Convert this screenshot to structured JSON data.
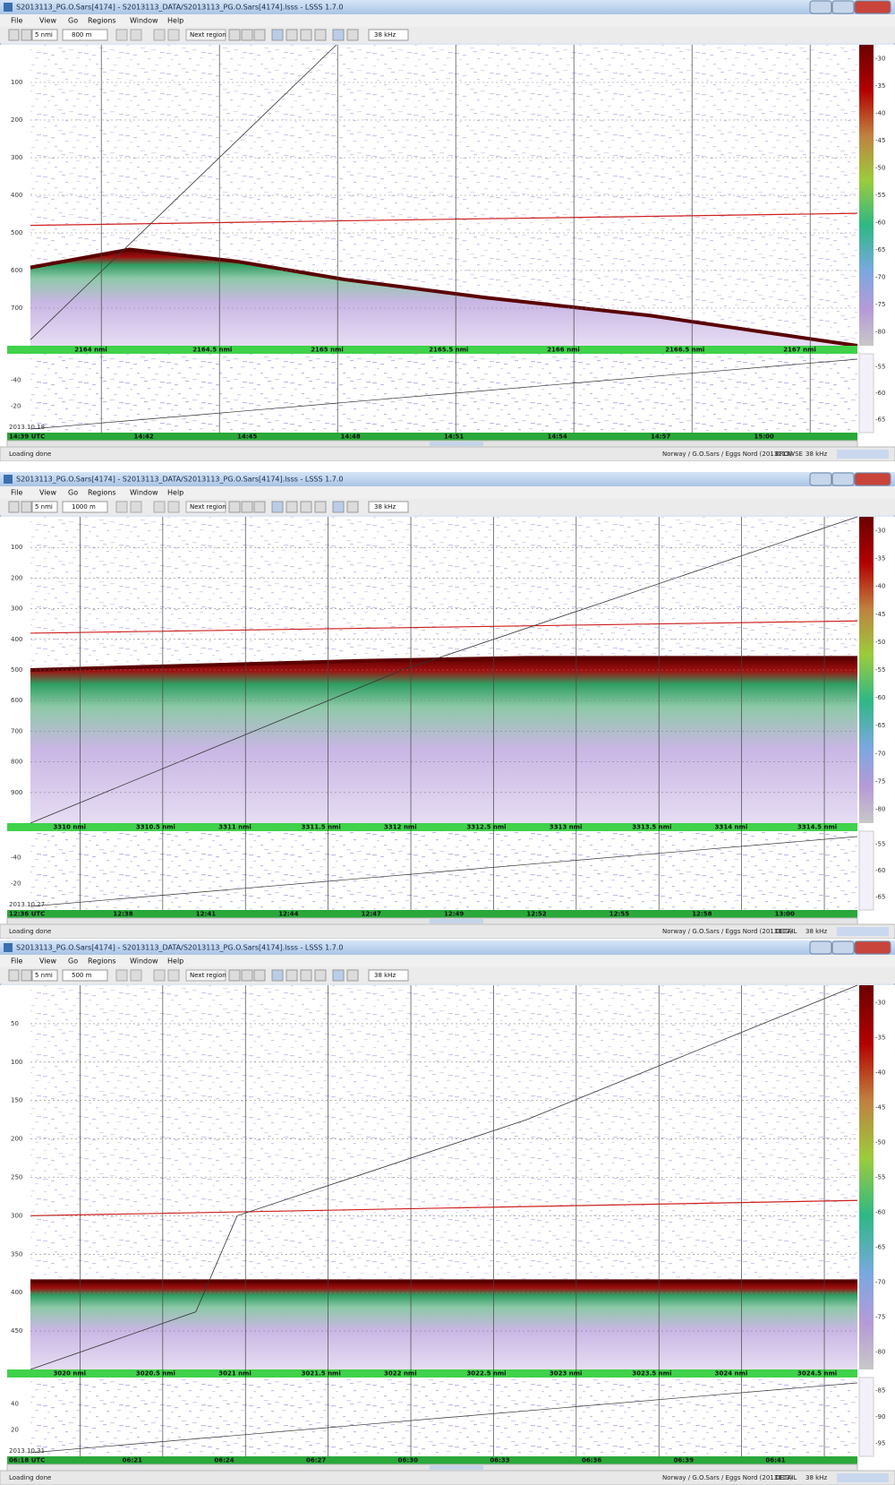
{
  "windows": [
    {
      "title": "S2013113_PG.O.Sars[4174] - S2013113_DATA/S2013113_PG.O.Sars[4174].lsss - LSSS 1.7.0",
      "menu": [
        "File",
        "View",
        "Go",
        "Regions",
        "Window",
        "Help"
      ],
      "toolbar": {
        "range": "5 nmi",
        "depth": "800 m",
        "next": "Next region",
        "freq": "38 kHz"
      },
      "depth_labels": [
        "100",
        "200",
        "300",
        "400",
        "500",
        "600",
        "700"
      ],
      "distance_labels": [
        "2164 nmi",
        "2164.5 nmi",
        "2165 nmi",
        "2165.5 nmi",
        "2166 nmi",
        "2166.5 nmi",
        "2167 nmi"
      ],
      "lower_labels": [
        "-40",
        "-20"
      ],
      "date": "2013.10.18",
      "time_labels": [
        "14:39 UTC",
        "14:42",
        "14:45",
        "14:48",
        "14:51",
        "14:54",
        "14:57",
        "15:00"
      ],
      "colorbar_labels": [
        "-30",
        "-35",
        "-40",
        "-45",
        "-50",
        "-55",
        "-60",
        "-65",
        "-70",
        "-75",
        "-80"
      ],
      "lower_colorbar_labels": [
        "-55",
        "-60",
        "-65"
      ],
      "status": {
        "message": "Loading done",
        "survey": "Norway / G.O.Sars / Eggs Nord (2013113)",
        "mode": "BROWSE",
        "freq": "38 kHz"
      }
    },
    {
      "title": "S2013113_PG.O.Sars[4174] - S2013113_DATA/S2013113_PG.O.Sars[4174].lsss - LSSS 1.7.0",
      "menu": [
        "File",
        "View",
        "Go",
        "Regions",
        "Window",
        "Help"
      ],
      "toolbar": {
        "range": "5 nmi",
        "depth": "1000 m",
        "next": "Next region",
        "freq": "38 kHz"
      },
      "depth_labels": [
        "100",
        "200",
        "300",
        "400",
        "500",
        "600",
        "700",
        "800",
        "900"
      ],
      "distance_labels": [
        "3310 nmi",
        "3310.5 nmi",
        "3311 nmi",
        "3311.5 nmi",
        "3312 nmi",
        "3312.5 nmi",
        "3313 nmi",
        "3313.5 nmi",
        "3314 nmi",
        "3314.5 nmi"
      ],
      "lower_labels": [
        "-40",
        "-20"
      ],
      "date": "2013.10.27",
      "time_labels": [
        "12:36 UTC",
        "12:38",
        "12:41",
        "12:44",
        "12:47",
        "12:49",
        "12:52",
        "12:55",
        "12:58",
        "13:00"
      ],
      "colorbar_labels": [
        "-30",
        "-35",
        "-40",
        "-45",
        "-50",
        "-55",
        "-60",
        "-65",
        "-70",
        "-75",
        "-80"
      ],
      "lower_colorbar_labels": [
        "-55",
        "-60",
        "-65"
      ],
      "status": {
        "message": "Loading done",
        "survey": "Norway / G.O.Sars / Eggs Nord (2013113)",
        "mode": "DETAIL",
        "freq": "38 kHz"
      }
    },
    {
      "title": "S2013113_PG.O.Sars[4174] - S2013113_DATA/S2013113_PG.O.Sars[4174].lsss - LSSS 1.7.0",
      "menu": [
        "File",
        "View",
        "Go",
        "Regions",
        "Window",
        "Help"
      ],
      "toolbar": {
        "range": "5 nmi",
        "depth": "500 m",
        "next": "Next region",
        "freq": "38 kHz"
      },
      "depth_labels": [
        "50",
        "100",
        "150",
        "200",
        "250",
        "300",
        "350",
        "400",
        "450"
      ],
      "distance_labels": [
        "3020 nmi",
        "3020.5 nmi",
        "3021 nmi",
        "3021.5 nmi",
        "3022 nmi",
        "3022.5 nmi",
        "3023 nmi",
        "3023.5 nmi",
        "3024 nmi",
        "3024.5 nmi"
      ],
      "lower_labels": [
        "40",
        "20"
      ],
      "date": "2013.10.31",
      "time_labels": [
        "06:18 UTC",
        "06:21",
        "06:24",
        "06:27",
        "06:30",
        "06:33",
        "06:36",
        "06:39",
        "06:41"
      ],
      "colorbar_labels": [
        "-30",
        "-35",
        "-40",
        "-45",
        "-50",
        "-55",
        "-60",
        "-65",
        "-70",
        "-75",
        "-80"
      ],
      "lower_colorbar_labels": [
        "-85",
        "-90",
        "-95"
      ],
      "status": {
        "message": "Loading done",
        "survey": "Norway / G.O.Sars / Eggs Nord (2013113)",
        "mode": "DETAIL",
        "freq": "38 kHz"
      }
    }
  ]
}
